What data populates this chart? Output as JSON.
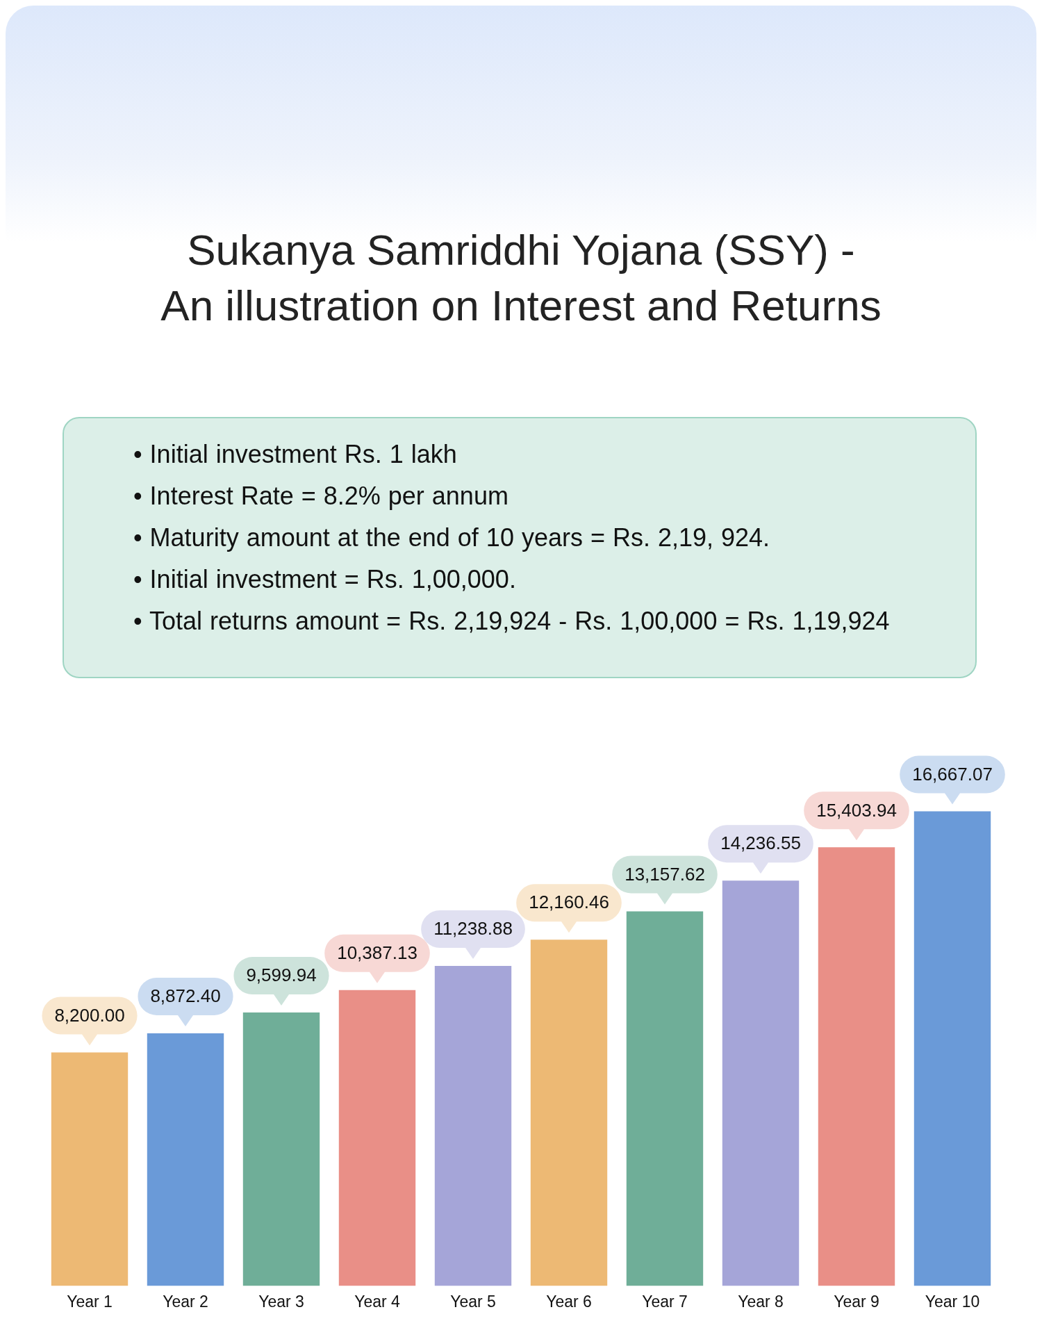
{
  "chart_data": {
    "type": "bar",
    "title": "Sukanya Samriddhi Yojana (SSY) - An illustration on Interest and Returns",
    "annotations": [
      "• Initial investment Rs. 1 lakh",
      "• Interest Rate = 8.2% per annum",
      "• Maturity amount at the end of 10 years = Rs. 2,19, 924.",
      "• Initial investment = Rs. 1,00,000.",
      "• Total returns amount = Rs. 2,19,924 - Rs. 1,00,000 = Rs. 1,19,924"
    ],
    "categories": [
      "Year 1",
      "Year 2",
      "Year 3",
      "Year 4",
      "Year 5",
      "Year 6",
      "Year 7",
      "Year 8",
      "Year 9",
      "Year 10"
    ],
    "values": [
      8200.0,
      8872.4,
      9599.94,
      10387.13,
      11238.88,
      12160.46,
      13157.62,
      14236.55,
      15403.94,
      16667.07
    ],
    "colors": [
      "#edb974",
      "#6a9ad8",
      "#6fae98",
      "#e98f87",
      "#a5a5d8",
      "#edb974",
      "#6fae98",
      "#a5a5d8",
      "#e98f87",
      "#6a9ad8"
    ],
    "value_labels": [
      "8,200.00",
      "8,872.40",
      "9,599.94",
      "10,387.13",
      "11,238.88",
      "12,160.46",
      "13,157.62",
      "14,236.55",
      "15,403.94",
      "16,667.07"
    ],
    "tick_labels": "x"
  }
}
